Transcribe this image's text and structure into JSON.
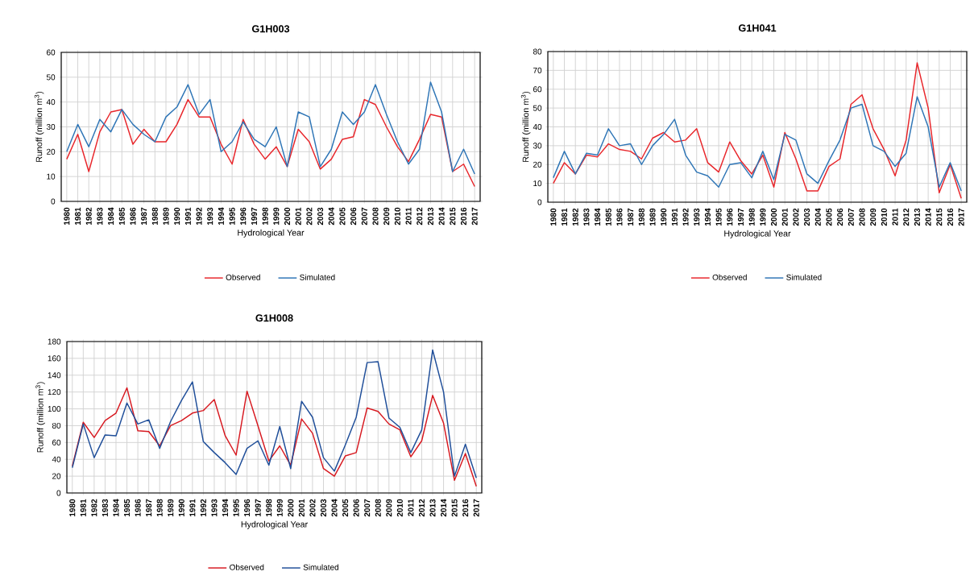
{
  "chart_data": [
    {
      "type": "line",
      "title": "G1H003",
      "xlabel": "Hydrological Year",
      "ylabel": "Runoff (million m$^{3}$)",
      "grid": true,
      "legend": "bottom",
      "ylim": [
        0,
        60
      ],
      "yticks": [
        0,
        10,
        20,
        30,
        40,
        50,
        60
      ],
      "categories": [
        "1980",
        "1981",
        "1982",
        "1983",
        "1984",
        "1985",
        "1986",
        "1987",
        "1988",
        "1989",
        "1990",
        "1991",
        "1992",
        "1993",
        "1994",
        "1995",
        "1996",
        "1997",
        "1998",
        "1999",
        "2000",
        "2001",
        "2002",
        "2003",
        "2004",
        "2005",
        "2006",
        "2007",
        "2008",
        "2009",
        "2010",
        "2011",
        "2012",
        "2013",
        "2014",
        "2015",
        "2016",
        "2017"
      ],
      "series": [
        {
          "name": "Observed",
          "color": "#e8262b",
          "values": [
            17,
            27,
            12,
            28,
            36,
            37,
            23,
            29,
            24,
            24,
            31,
            41,
            34,
            34,
            23,
            15,
            33,
            23,
            17,
            22,
            14,
            29,
            24,
            13,
            17,
            25,
            26,
            41,
            39,
            30,
            22,
            16,
            25,
            35,
            34,
            12,
            15,
            6
          ]
        },
        {
          "name": "Simulated",
          "color": "#2e75b6",
          "values": [
            20,
            31,
            22,
            33,
            28,
            37,
            31,
            27,
            24,
            34,
            38,
            47,
            35,
            41,
            20,
            24,
            32,
            25,
            22,
            30,
            14,
            36,
            34,
            14,
            21,
            36,
            31,
            36,
            47,
            35,
            24,
            15,
            21,
            48,
            36,
            12,
            21,
            11
          ]
        }
      ]
    },
    {
      "type": "line",
      "title": "G1H041",
      "xlabel": "Hydrological Year",
      "ylabel": "Runoff (million m$^{3}$)",
      "grid": true,
      "legend": "bottom",
      "ylim": [
        0,
        80
      ],
      "yticks": [
        0,
        10,
        20,
        30,
        40,
        50,
        60,
        70,
        80
      ],
      "categories": [
        "1980",
        "1981",
        "1982",
        "1983",
        "1984",
        "1985",
        "1986",
        "1987",
        "1988",
        "1989",
        "1990",
        "1991",
        "1992",
        "1993",
        "1994",
        "1995",
        "1996",
        "1997",
        "1998",
        "1999",
        "2000",
        "2001",
        "2002",
        "2003",
        "2004",
        "2005",
        "2006",
        "2007",
        "2008",
        "2009",
        "2010",
        "2011",
        "2012",
        "2013",
        "2014",
        "2015",
        "2016",
        "2017"
      ],
      "series": [
        {
          "name": "Observed",
          "color": "#e8262b",
          "values": [
            10,
            21,
            15,
            25,
            24,
            31,
            28,
            27,
            23,
            34,
            37,
            32,
            33,
            39,
            21,
            16,
            32,
            22,
            15,
            25,
            8,
            37,
            23,
            6,
            6,
            19,
            23,
            52,
            57,
            39,
            28,
            14,
            33,
            74,
            50,
            5,
            20,
            2
          ]
        },
        {
          "name": "Simulated",
          "color": "#2e75b6",
          "values": [
            13,
            27,
            15,
            26,
            25,
            39,
            30,
            31,
            20,
            30,
            36,
            44,
            25,
            16,
            14,
            8,
            20,
            21,
            13,
            27,
            12,
            36,
            33,
            15,
            10,
            22,
            33,
            50,
            52,
            30,
            27,
            19,
            26,
            56,
            40,
            8,
            21,
            6
          ]
        }
      ]
    },
    {
      "type": "line",
      "title": "G1H008",
      "xlabel": "Hydrological Year",
      "ylabel": "Runoff (million m$^{3}$)",
      "grid": true,
      "legend": "bottom",
      "ylim": [
        0,
        180
      ],
      "yticks": [
        0,
        20,
        40,
        60,
        80,
        100,
        120,
        140,
        160,
        180
      ],
      "categories": [
        "1980",
        "1981",
        "1982",
        "1983",
        "1984",
        "1985",
        "1986",
        "1987",
        "1988",
        "1989",
        "1990",
        "1991",
        "1992",
        "1993",
        "1994",
        "1995",
        "1996",
        "1997",
        "1998",
        "1999",
        "2000",
        "2001",
        "2002",
        "2003",
        "2004",
        "2005",
        "2006",
        "2007",
        "2008",
        "2009",
        "2010",
        "2011",
        "2012",
        "2013",
        "2014",
        "2015",
        "2016",
        "2017"
      ],
      "series": [
        {
          "name": "Observed",
          "color": "#d71920",
          "values": [
            32,
            84,
            66,
            86,
            95,
            125,
            74,
            73,
            56,
            80,
            86,
            95,
            98,
            111,
            68,
            45,
            121,
            80,
            38,
            56,
            33,
            88,
            71,
            29,
            20,
            44,
            48,
            101,
            97,
            82,
            75,
            43,
            62,
            116,
            83,
            15,
            47,
            8
          ]
        },
        {
          "name": "Simulated",
          "color": "#1f4e99",
          "values": [
            30,
            82,
            42,
            69,
            68,
            107,
            82,
            87,
            53,
            85,
            110,
            132,
            61,
            48,
            36,
            22,
            53,
            62,
            33,
            79,
            29,
            109,
            90,
            42,
            26,
            57,
            90,
            155,
            156,
            89,
            78,
            48,
            75,
            170,
            120,
            20,
            58,
            18
          ]
        }
      ]
    }
  ]
}
